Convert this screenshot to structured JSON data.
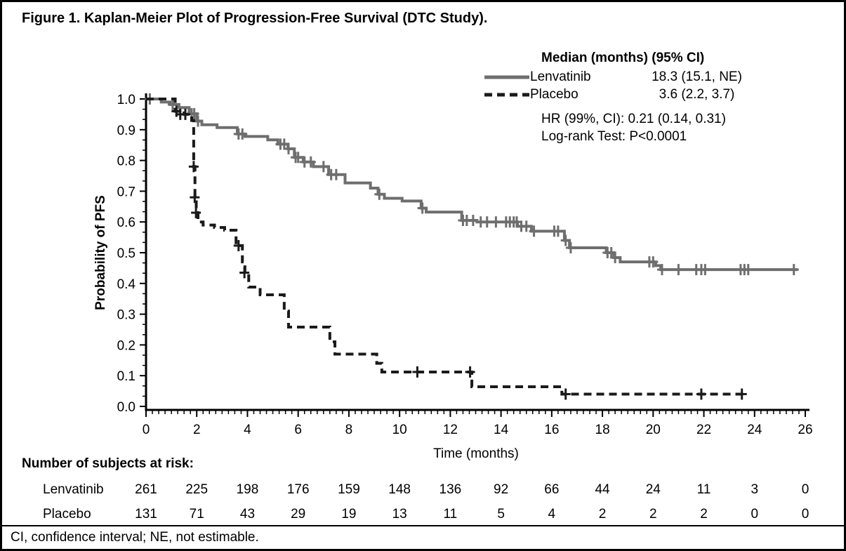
{
  "figure": {
    "title": "Figure 1. Kaplan-Meier Plot of Progression-Free Survival (DTC Study).",
    "footnote": "CI, confidence interval; NE, not estimable."
  },
  "legend": {
    "header": "Median (months) (95% CI)",
    "entries": [
      {
        "name": "Lenvatinib",
        "median": "18.3 (15.1, NE)"
      },
      {
        "name": "Placebo",
        "median": "3.6 (2.2, 3.7)"
      }
    ],
    "hr_text": "HR (99%, CI): 0.21 (0.14, 0.31)",
    "logrank_text": "Log-rank Test: P<0.0001"
  },
  "chart_data": {
    "type": "line",
    "subtype": "kaplan-meier-step",
    "title": "Kaplan-Meier Plot of Progression-Free Survival (DTC Study)",
    "xlabel": "Time (months)",
    "ylabel": "Probability of PFS",
    "xlim": [
      0,
      26
    ],
    "ylim": [
      0.0,
      1.0
    ],
    "x_major_ticks": [
      0,
      2,
      4,
      6,
      8,
      10,
      12,
      14,
      16,
      18,
      20,
      22,
      24,
      26
    ],
    "x_minor_step": 0.25,
    "y_major_ticks": [
      "1.0",
      "0.9",
      "0.8",
      "0.7",
      "0.6",
      "0.5",
      "0.4",
      "0.3",
      "0.2",
      "0.1",
      "0.0"
    ],
    "y_minor_divisions": 3,
    "grid": false,
    "legend_position": "top-right",
    "colors": {
      "lenvatinib": "#6e6e6e",
      "placebo": "#1a1a1a"
    },
    "series": [
      {
        "name": "Lenvatinib",
        "color": "#6e6e6e",
        "dash": null,
        "width": 4,
        "steps": [
          [
            0,
            1.0
          ],
          [
            0.6,
            0.99
          ],
          [
            0.95,
            0.982
          ],
          [
            1.3,
            0.972
          ],
          [
            1.7,
            0.952
          ],
          [
            2.0,
            0.928
          ],
          [
            2.2,
            0.916
          ],
          [
            2.8,
            0.907
          ],
          [
            3.6,
            0.886
          ],
          [
            3.9,
            0.878
          ],
          [
            4.8,
            0.867
          ],
          [
            5.2,
            0.853
          ],
          [
            5.6,
            0.838
          ],
          [
            5.85,
            0.81
          ],
          [
            6.2,
            0.795
          ],
          [
            6.6,
            0.78
          ],
          [
            7.2,
            0.754
          ],
          [
            7.85,
            0.727
          ],
          [
            8.85,
            0.71
          ],
          [
            9.15,
            0.69
          ],
          [
            9.4,
            0.677
          ],
          [
            10.1,
            0.668
          ],
          [
            10.85,
            0.645
          ],
          [
            11.05,
            0.632
          ],
          [
            12.45,
            0.605
          ],
          [
            13.05,
            0.6
          ],
          [
            14.65,
            0.586
          ],
          [
            15.2,
            0.57
          ],
          [
            16.5,
            0.54
          ],
          [
            16.7,
            0.516
          ],
          [
            18.15,
            0.5
          ],
          [
            18.45,
            0.484
          ],
          [
            18.7,
            0.47
          ],
          [
            20.1,
            0.458
          ],
          [
            20.3,
            0.445
          ],
          [
            25.7,
            0.445
          ]
        ],
        "censors": [
          [
            0.15,
            1.0
          ],
          [
            1.05,
            0.982
          ],
          [
            1.8,
            0.952
          ],
          [
            1.9,
            0.952
          ],
          [
            2.05,
            0.928
          ],
          [
            3.65,
            0.886
          ],
          [
            3.8,
            0.886
          ],
          [
            5.3,
            0.853
          ],
          [
            5.45,
            0.853
          ],
          [
            5.62,
            0.838
          ],
          [
            5.9,
            0.81
          ],
          [
            6.0,
            0.81
          ],
          [
            6.25,
            0.795
          ],
          [
            6.5,
            0.795
          ],
          [
            7.0,
            0.78
          ],
          [
            7.3,
            0.754
          ],
          [
            7.5,
            0.754
          ],
          [
            9.2,
            0.69
          ],
          [
            10.9,
            0.645
          ],
          [
            12.5,
            0.605
          ],
          [
            12.65,
            0.605
          ],
          [
            12.9,
            0.605
          ],
          [
            13.2,
            0.6
          ],
          [
            13.45,
            0.6
          ],
          [
            13.8,
            0.6
          ],
          [
            14.2,
            0.6
          ],
          [
            14.35,
            0.6
          ],
          [
            14.5,
            0.6
          ],
          [
            14.62,
            0.6
          ],
          [
            14.8,
            0.586
          ],
          [
            15.0,
            0.586
          ],
          [
            15.3,
            0.57
          ],
          [
            16.1,
            0.57
          ],
          [
            16.25,
            0.57
          ],
          [
            16.55,
            0.54
          ],
          [
            16.75,
            0.516
          ],
          [
            18.2,
            0.5
          ],
          [
            18.35,
            0.5
          ],
          [
            18.5,
            0.484
          ],
          [
            19.85,
            0.47
          ],
          [
            20.0,
            0.47
          ],
          [
            20.35,
            0.445
          ],
          [
            21.0,
            0.445
          ],
          [
            21.7,
            0.445
          ],
          [
            21.9,
            0.445
          ],
          [
            22.05,
            0.445
          ],
          [
            23.45,
            0.445
          ],
          [
            23.6,
            0.445
          ],
          [
            23.75,
            0.445
          ],
          [
            25.55,
            0.445
          ]
        ],
        "median_months": "18.3 (15.1, NE)"
      },
      {
        "name": "Placebo",
        "color": "#1a1a1a",
        "dash": [
          11,
          7
        ],
        "width": 4,
        "steps": [
          [
            0,
            1.0
          ],
          [
            1.15,
            0.96
          ],
          [
            1.5,
            0.95
          ],
          [
            1.8,
            0.93
          ],
          [
            1.88,
            0.78
          ],
          [
            1.93,
            0.68
          ],
          [
            1.98,
            0.63
          ],
          [
            2.05,
            0.6
          ],
          [
            2.25,
            0.59
          ],
          [
            2.7,
            0.582
          ],
          [
            3.1,
            0.573
          ],
          [
            3.55,
            0.523
          ],
          [
            3.8,
            0.47
          ],
          [
            3.9,
            0.435
          ],
          [
            4.05,
            0.388
          ],
          [
            4.5,
            0.363
          ],
          [
            5.45,
            0.31
          ],
          [
            5.62,
            0.258
          ],
          [
            7.25,
            0.21
          ],
          [
            7.45,
            0.17
          ],
          [
            9.1,
            0.14
          ],
          [
            9.3,
            0.112
          ],
          [
            12.85,
            0.064
          ],
          [
            16.4,
            0.04
          ],
          [
            23.7,
            0.04
          ]
        ],
        "censors": [
          [
            1.2,
            0.96
          ],
          [
            1.35,
            0.95
          ],
          [
            1.55,
            0.95
          ],
          [
            1.88,
            0.78
          ],
          [
            1.92,
            0.68
          ],
          [
            1.97,
            0.63
          ],
          [
            3.65,
            0.523
          ],
          [
            3.88,
            0.435
          ],
          [
            10.7,
            0.112
          ],
          [
            12.78,
            0.112
          ],
          [
            16.55,
            0.04
          ],
          [
            21.9,
            0.04
          ],
          [
            23.5,
            0.04
          ]
        ],
        "median_months": "3.6 (2.2, 3.7)"
      }
    ],
    "annotations": [
      "HR (99%, CI): 0.21 (0.14, 0.31)",
      "Log-rank Test: P<0.0001"
    ]
  },
  "risk_table": {
    "header": "Number of subjects at risk:",
    "time_points": [
      0,
      2,
      4,
      6,
      8,
      10,
      12,
      14,
      16,
      18,
      20,
      22,
      24,
      26
    ],
    "rows": [
      {
        "label": "Lenvatinib",
        "values": [
          261,
          225,
          198,
          176,
          159,
          148,
          136,
          92,
          66,
          44,
          24,
          11,
          3,
          0
        ]
      },
      {
        "label": "Placebo",
        "values": [
          131,
          71,
          43,
          29,
          19,
          13,
          11,
          5,
          4,
          2,
          2,
          2,
          0,
          0
        ]
      }
    ]
  }
}
